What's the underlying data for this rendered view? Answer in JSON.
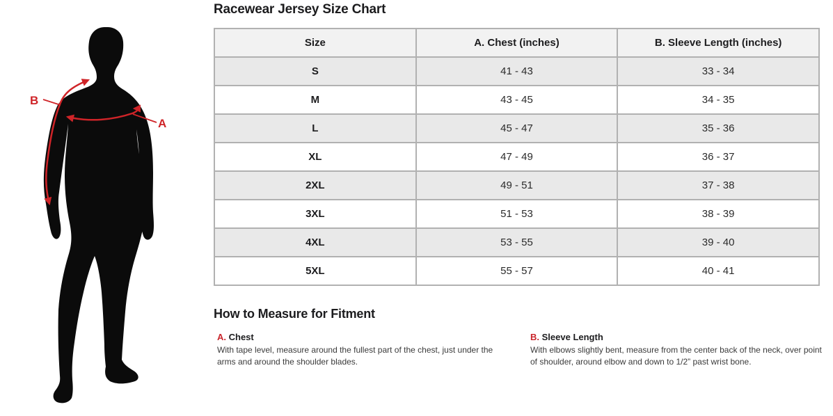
{
  "header": {
    "title": "Racewear Jersey Size Chart"
  },
  "figure": {
    "label_a": "A",
    "label_b": "B",
    "silhouette_color": "#0b0b0b",
    "measure_line_color": "#cf2428"
  },
  "size_chart": {
    "columns": [
      "Size",
      "A. Chest (inches)",
      "B. Sleeve Length (inches)"
    ],
    "rows": [
      [
        "S",
        "41 - 43",
        "33 - 34"
      ],
      [
        "M",
        "43 - 45",
        "34 - 35"
      ],
      [
        "L",
        "45 - 47",
        "35 - 36"
      ],
      [
        "XL",
        "47 - 49",
        "36 - 37"
      ],
      [
        "2XL",
        "49 - 51",
        "37 - 38"
      ],
      [
        "3XL",
        "51 - 53",
        "38 - 39"
      ],
      [
        "4XL",
        "53 - 55",
        "39 - 40"
      ],
      [
        "5XL",
        "55 - 57",
        "40 - 41"
      ]
    ]
  },
  "measure": {
    "heading": "How to Measure for Fitment",
    "items": [
      {
        "letter": "A.",
        "name": "Chest",
        "text": "With tape level, measure around the fullest part of the chest, just under the arms and around the shoulder blades."
      },
      {
        "letter": "B.",
        "name": "Sleeve Length",
        "text": "With elbows slightly bent, measure from the center back of the neck, over point of shoulder, around elbow and down to 1/2” past wrist bone."
      }
    ]
  },
  "colors": {
    "accent_red": "#c9252b",
    "table_border": "#b1b1b1",
    "header_row_bg": "#f2f2f2",
    "stripe_row_bg": "#e9e9e9",
    "text_dark": "#1d1d1f"
  }
}
